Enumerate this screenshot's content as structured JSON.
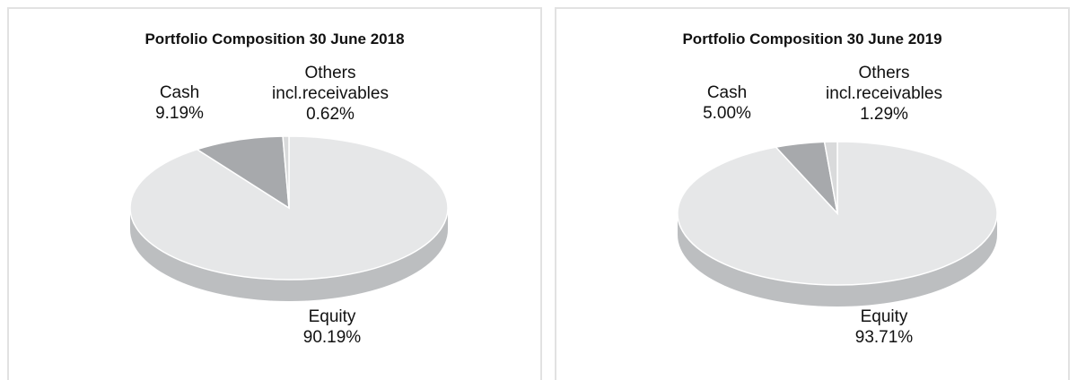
{
  "chart_data": [
    {
      "type": "pie",
      "title": "Portfolio Composition 30 June 2018",
      "categories": [
        "Equity",
        "Cash",
        "Others incl.receivables"
      ],
      "values": [
        90.19,
        9.19,
        0.62
      ],
      "value_labels": [
        "90.19%",
        "9.19%",
        "0.62%"
      ],
      "colors": [
        "#e6e7e8",
        "#a7a9ac",
        "#d9dadb"
      ]
    },
    {
      "type": "pie",
      "title": "Portfolio Composition 30 June 2019",
      "categories": [
        "Equity",
        "Cash",
        "Others incl.receivables"
      ],
      "values": [
        93.71,
        5.0,
        1.29
      ],
      "value_labels": [
        "93.71%",
        "5.00%",
        "1.29%"
      ],
      "colors": [
        "#e6e7e8",
        "#a7a9ac",
        "#d9dadb"
      ]
    }
  ]
}
